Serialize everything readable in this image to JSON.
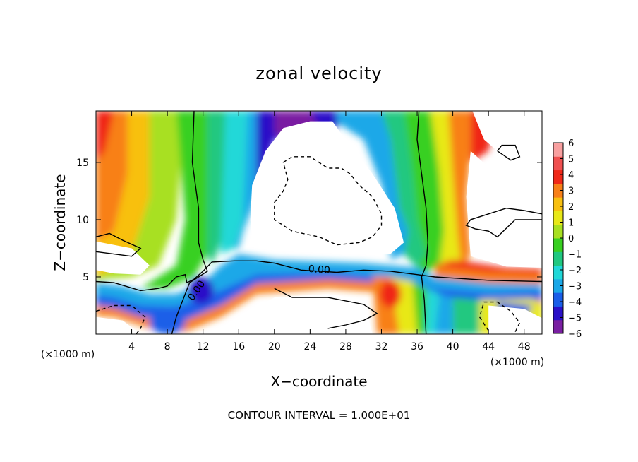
{
  "chart_data": {
    "type": "heatmap",
    "title": "zonal velocity",
    "xlabel": "X−coordinate",
    "ylabel": "Z−coordinate",
    "x_unit_label": "(×1000 m)",
    "x_unit_label_right": "(×1000 m)",
    "xlim": [
      0,
      50
    ],
    "ylim": [
      0,
      19.5
    ],
    "xticks": [
      4,
      8,
      12,
      16,
      20,
      24,
      28,
      32,
      36,
      40,
      44,
      48
    ],
    "yticks": [
      5,
      10,
      15
    ],
    "colorbar": {
      "min": -6,
      "max": 6,
      "ticks": [
        6,
        5,
        4,
        3,
        2,
        1,
        0,
        -1,
        -2,
        -3,
        -4,
        -5,
        -6
      ],
      "tick_labels": [
        "6",
        "5",
        "4",
        "3",
        "2",
        "1",
        "0",
        "−1",
        "−2",
        "−3",
        "−4",
        "−5",
        "−6"
      ],
      "colors": [
        "#7a1fa2",
        "#2a10c8",
        "#1a5ee8",
        "#1aa8e8",
        "#20d8d8",
        "#20c880",
        "#38d020",
        "#a8e020",
        "#e8e818",
        "#f8c010",
        "#f88018",
        "#f02818",
        "#f05050",
        "#f8a0a0"
      ]
    },
    "contour_labels": [
      "0.00",
      "0.00"
    ],
    "footer": "CONTOUR INTERVAL = 1.000E+01"
  }
}
